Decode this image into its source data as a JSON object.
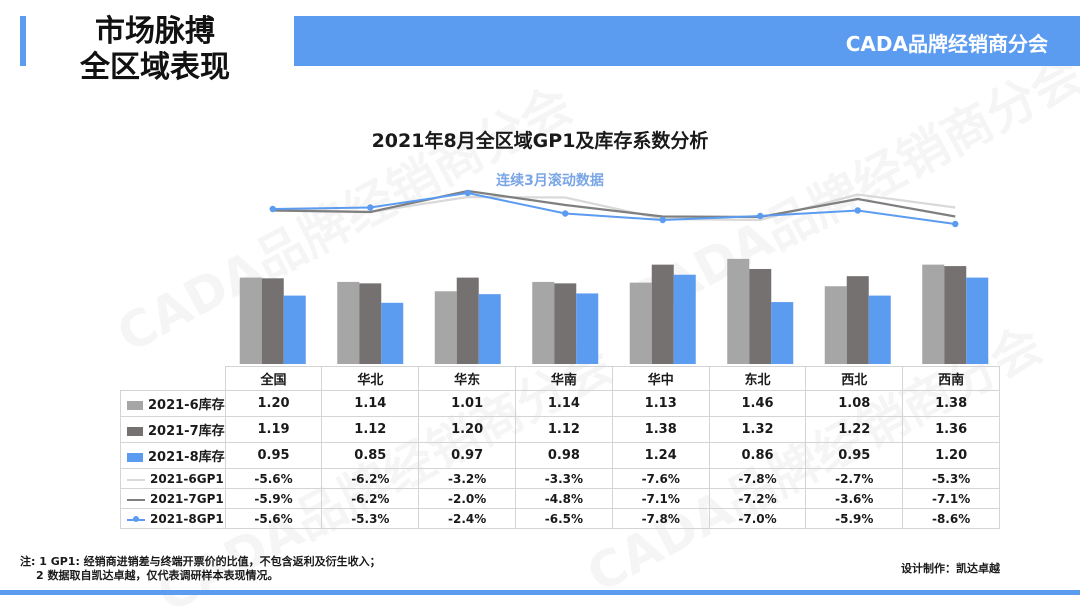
{
  "header": {
    "title_line1": "市场脉搏",
    "title_line2": "全区域表现",
    "org": "CADA品牌经销商分会"
  },
  "watermark": "CADA品牌经销商分会",
  "colors": {
    "accent": "#5b9bf0",
    "inv_jun": "#a6a6a6",
    "inv_jul": "#767171",
    "inv_aug": "#5b9bf0",
    "gp_jun": "#d9d9d9",
    "gp_jul": "#7f7f7f",
    "gp_aug": "#5b9bf0"
  },
  "chart_data": {
    "type": "bar+line",
    "title": "2021年8月全区域GP1及库存系数分析",
    "subtitle": "连续3月滚动数据",
    "categories": [
      "全国",
      "华北",
      "华东",
      "华南",
      "华中",
      "东北",
      "西北",
      "西南"
    ],
    "bar_series": [
      {
        "name": "2021-6库存",
        "values": [
          1.2,
          1.14,
          1.01,
          1.14,
          1.13,
          1.46,
          1.08,
          1.38
        ],
        "labels": [
          "1.20",
          "1.14",
          "1.01",
          "1.14",
          "1.13",
          "1.46",
          "1.08",
          "1.38"
        ]
      },
      {
        "name": "2021-7库存",
        "values": [
          1.19,
          1.12,
          1.2,
          1.12,
          1.38,
          1.32,
          1.22,
          1.36
        ],
        "labels": [
          "1.19",
          "1.12",
          "1.20",
          "1.12",
          "1.38",
          "1.32",
          "1.22",
          "1.36"
        ]
      },
      {
        "name": "2021-8库存",
        "values": [
          0.95,
          0.85,
          0.97,
          0.98,
          1.24,
          0.86,
          0.95,
          1.2
        ],
        "labels": [
          "0.95",
          "0.85",
          "0.97",
          "0.98",
          "1.24",
          "0.86",
          "0.95",
          "1.20"
        ]
      }
    ],
    "line_series": [
      {
        "name": "2021-6GP1",
        "values": [
          -5.6,
          -6.2,
          -3.2,
          -3.3,
          -7.6,
          -7.8,
          -2.7,
          -5.3
        ],
        "labels": [
          "-5.6%",
          "-6.2%",
          "-3.2%",
          "-3.3%",
          "-7.6%",
          "-7.8%",
          "-2.7%",
          "-5.3%"
        ]
      },
      {
        "name": "2021-7GP1",
        "values": [
          -5.9,
          -6.2,
          -2.0,
          -4.8,
          -7.1,
          -7.2,
          -3.6,
          -7.1
        ],
        "labels": [
          "-5.9%",
          "-6.2%",
          "-2.0%",
          "-4.8%",
          "-7.1%",
          "-7.2%",
          "-3.6%",
          "-7.1%"
        ]
      },
      {
        "name": "2021-8GP1",
        "values": [
          -5.6,
          -5.3,
          -2.4,
          -6.5,
          -7.8,
          -7.0,
          -5.9,
          -8.6
        ],
        "labels": [
          "-5.6%",
          "-5.3%",
          "-2.4%",
          "-6.5%",
          "-7.8%",
          "-7.0%",
          "-5.9%",
          "-8.6%"
        ]
      }
    ],
    "bar_ylim": [
      0,
      1.6
    ],
    "line_ylim": [
      -11,
      -1
    ],
    "legend": "data-table-below"
  },
  "footnote": {
    "line1": "注: 1 GP1: 经销商进销差与终端开票价的比值，不包含返利及衍生收入；",
    "line2": "2 数据取自凯达卓越，仅代表调研样本表现情况。"
  },
  "credit": "设计制作：凯达卓越"
}
